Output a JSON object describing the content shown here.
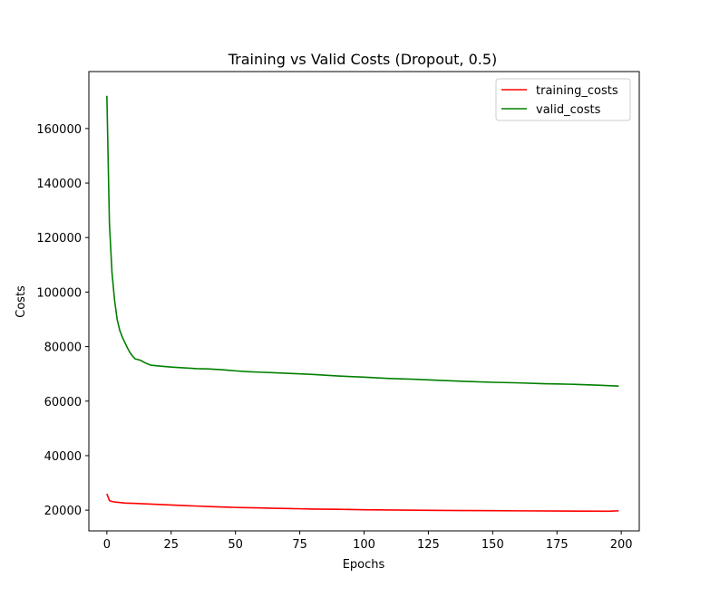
{
  "chart_data": {
    "type": "line",
    "title": "Training vs Valid Costs (Dropout, 0.5)",
    "xlabel": "Epochs",
    "ylabel": "Costs",
    "xlim": [
      -7,
      207
    ],
    "ylim": [
      12400,
      180900
    ],
    "xticks": [
      0,
      25,
      50,
      75,
      100,
      125,
      150,
      175,
      200
    ],
    "yticks": [
      20000,
      40000,
      60000,
      80000,
      100000,
      120000,
      140000,
      160000
    ],
    "grid": false,
    "legend_position": "upper right",
    "series": [
      {
        "name": "training_costs",
        "color": "#ff0000",
        "points": [
          [
            0,
            26000
          ],
          [
            1,
            23500
          ],
          [
            2,
            23200
          ],
          [
            3,
            23000
          ],
          [
            5,
            22800
          ],
          [
            7,
            22600
          ],
          [
            10,
            22500
          ],
          [
            15,
            22300
          ],
          [
            20,
            22100
          ],
          [
            25,
            21900
          ],
          [
            30,
            21700
          ],
          [
            35,
            21500
          ],
          [
            40,
            21300
          ],
          [
            45,
            21150
          ],
          [
            50,
            21000
          ],
          [
            55,
            20900
          ],
          [
            60,
            20800
          ],
          [
            65,
            20700
          ],
          [
            70,
            20600
          ],
          [
            75,
            20500
          ],
          [
            80,
            20400
          ],
          [
            90,
            20300
          ],
          [
            100,
            20150
          ],
          [
            110,
            20050
          ],
          [
            125,
            19950
          ],
          [
            140,
            19850
          ],
          [
            150,
            19800
          ],
          [
            160,
            19750
          ],
          [
            175,
            19700
          ],
          [
            185,
            19650
          ],
          [
            195,
            19600
          ],
          [
            199,
            19750
          ]
        ]
      },
      {
        "name": "valid_costs",
        "color": "#008000",
        "points": [
          [
            0,
            172000
          ],
          [
            1,
            125000
          ],
          [
            2,
            107000
          ],
          [
            3,
            97000
          ],
          [
            4,
            90000
          ],
          [
            5,
            86000
          ],
          [
            6,
            83500
          ],
          [
            7,
            81500
          ],
          [
            8,
            79500
          ],
          [
            9,
            77800
          ],
          [
            10,
            76500
          ],
          [
            11,
            75500
          ],
          [
            13,
            75000
          ],
          [
            15,
            74000
          ],
          [
            17,
            73200
          ],
          [
            20,
            72900
          ],
          [
            25,
            72500
          ],
          [
            30,
            72200
          ],
          [
            35,
            71900
          ],
          [
            40,
            71800
          ],
          [
            45,
            71500
          ],
          [
            50,
            71100
          ],
          [
            55,
            70800
          ],
          [
            60,
            70600
          ],
          [
            65,
            70400
          ],
          [
            70,
            70200
          ],
          [
            75,
            70000
          ],
          [
            80,
            69800
          ],
          [
            90,
            69200
          ],
          [
            100,
            68800
          ],
          [
            110,
            68300
          ],
          [
            120,
            68000
          ],
          [
            130,
            67600
          ],
          [
            140,
            67200
          ],
          [
            150,
            66900
          ],
          [
            160,
            66700
          ],
          [
            170,
            66400
          ],
          [
            175,
            66300
          ],
          [
            180,
            66200
          ],
          [
            190,
            65900
          ],
          [
            199,
            65500
          ]
        ]
      }
    ]
  }
}
